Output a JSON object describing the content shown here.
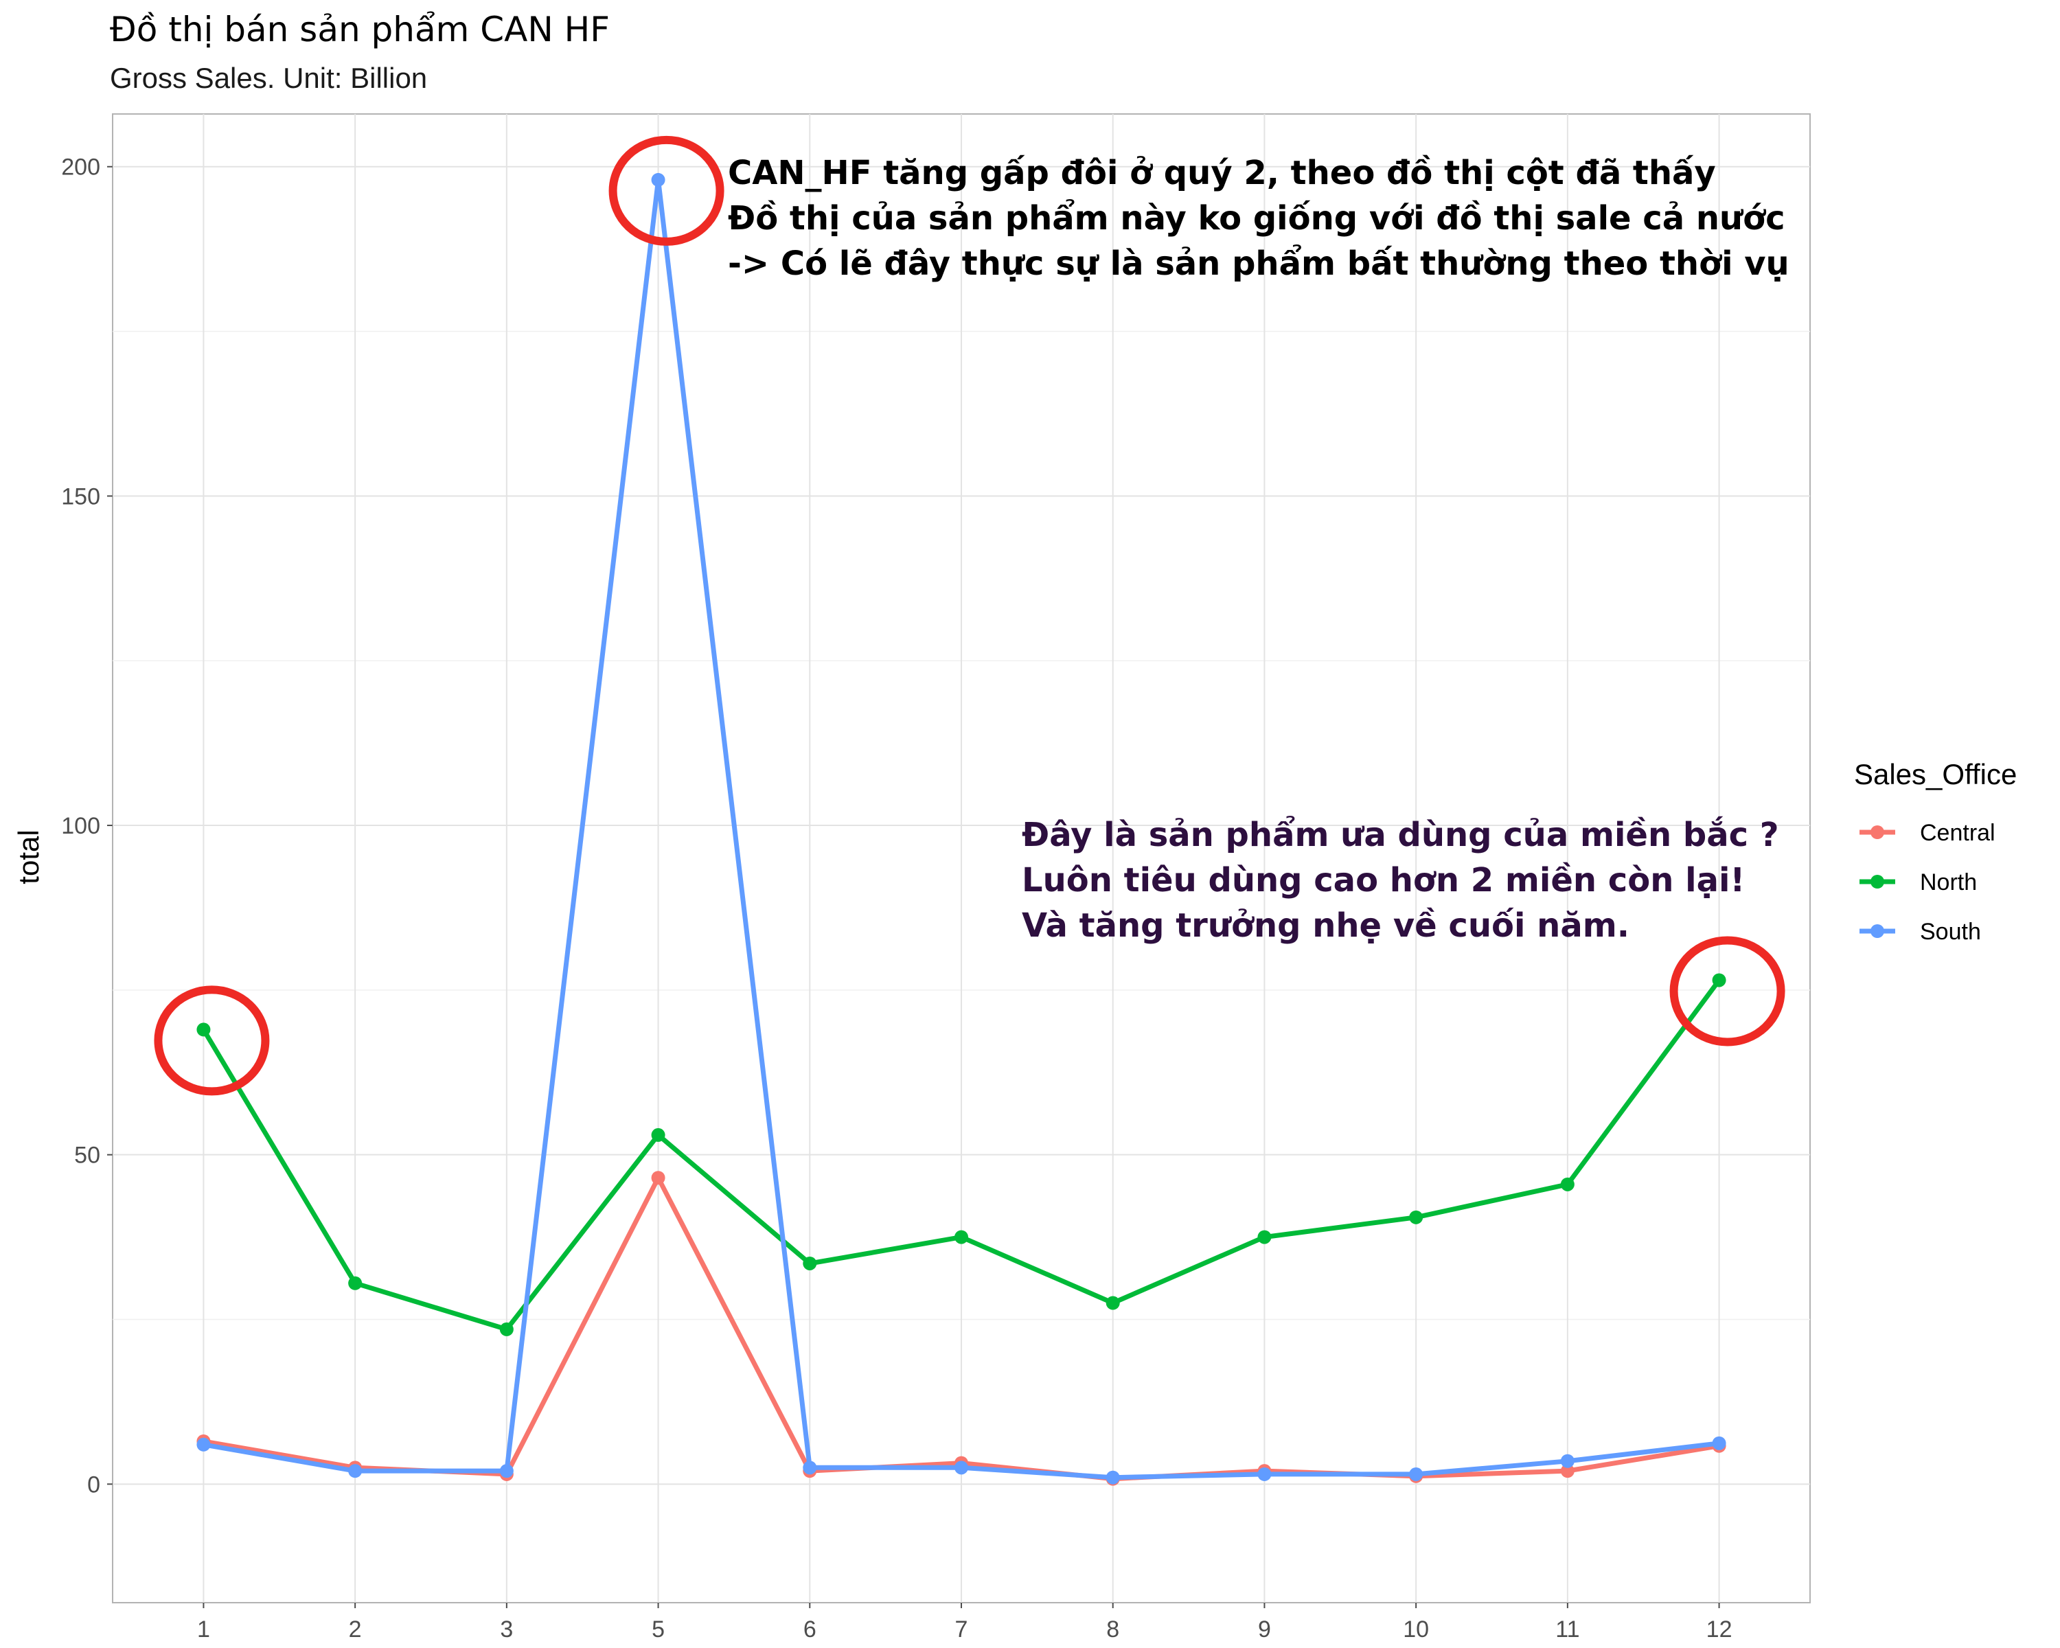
{
  "chart_data": {
    "type": "line",
    "title": "Đồ thị bán sản phẩm CAN HF",
    "subtitle": "Gross Sales. Unit: Billion",
    "xlabel": "",
    "ylabel": "total",
    "categories": [
      "1",
      "2",
      "3",
      "5",
      "6",
      "7",
      "8",
      "9",
      "10",
      "11",
      "12"
    ],
    "ylim": [
      -18,
      208
    ],
    "yticks": [
      0,
      50,
      100,
      150,
      200
    ],
    "grid": true,
    "legend": {
      "title": "Sales_Office",
      "placement": "right"
    },
    "series": [
      {
        "name": "Central",
        "color": "#f8766d",
        "values": [
          6.5,
          2.5,
          1.5,
          46.5,
          2,
          3.2,
          0.8,
          2,
          1.2,
          2,
          5.8
        ]
      },
      {
        "name": "North",
        "color": "#00ba38",
        "values": [
          69,
          30.5,
          23.5,
          53,
          33.5,
          37.5,
          27.5,
          37.5,
          40.5,
          45.5,
          76.5
        ]
      },
      {
        "name": "South",
        "color": "#619cff",
        "values": [
          6,
          2,
          2,
          198,
          2.5,
          2.5,
          1,
          1.5,
          1.5,
          3.5,
          6.2
        ]
      }
    ],
    "annotations": [
      {
        "color": "#000000",
        "lines": [
          "CAN_HF tăng gấp đôi ở quý 2, theo đồ thị cột đã thấy",
          "Đồ thị của sản phẩm này ko giống với đồ thị sale cả nước",
          "-> Có lẽ đây thực sự là sản phẩm bất thường theo thời vụ"
        ]
      },
      {
        "color": "#2d0f3f",
        "lines": [
          "Đây là sản phẩm ưa dùng của miền bắc ?",
          "Luôn tiêu dùng cao hơn 2 miền còn lại!",
          "Và tăng trưởng nhẹ về cuối năm."
        ]
      }
    ],
    "highlights": [
      {
        "series": "South",
        "category": "5",
        "color": "#ee2a24"
      },
      {
        "series": "North",
        "category": "1",
        "color": "#ee2a24"
      },
      {
        "series": "North",
        "category": "12",
        "color": "#ee2a24"
      }
    ]
  }
}
